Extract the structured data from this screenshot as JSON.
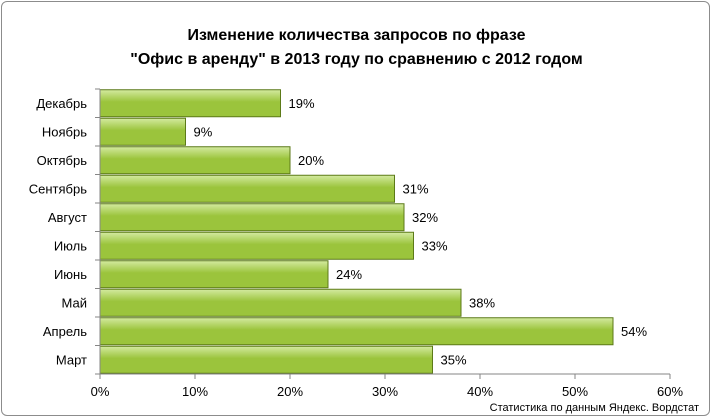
{
  "chart_data": {
    "type": "bar",
    "orientation": "horizontal",
    "title_lines": [
      "Изменение количества запросов по фразе",
      "\"Офис в аренду\"  в 2013 году по сравнению  с 2012 годом"
    ],
    "categories": [
      "Декабрь",
      "Ноябрь",
      "Октябрь",
      "Сентябрь",
      "Август",
      "Июль",
      "Июнь",
      "Май",
      "Апрель",
      "Март"
    ],
    "values": [
      19,
      9,
      20,
      31,
      32,
      33,
      24,
      38,
      54,
      35
    ],
    "data_labels": [
      "19%",
      "9%",
      "20%",
      "31%",
      "32%",
      "33%",
      "24%",
      "38%",
      "54%",
      "35%"
    ],
    "x_ticks": [
      "0%",
      "10%",
      "20%",
      "30%",
      "40%",
      "50%",
      "60%"
    ],
    "xlim": [
      0,
      60
    ],
    "grid": false,
    "bar_color": "#9bc43c",
    "bar_color_light": "#d4eaa0",
    "bar_border": "#5c7a18"
  },
  "source_note": "Статистика по данным Яндекс. Вордстат"
}
